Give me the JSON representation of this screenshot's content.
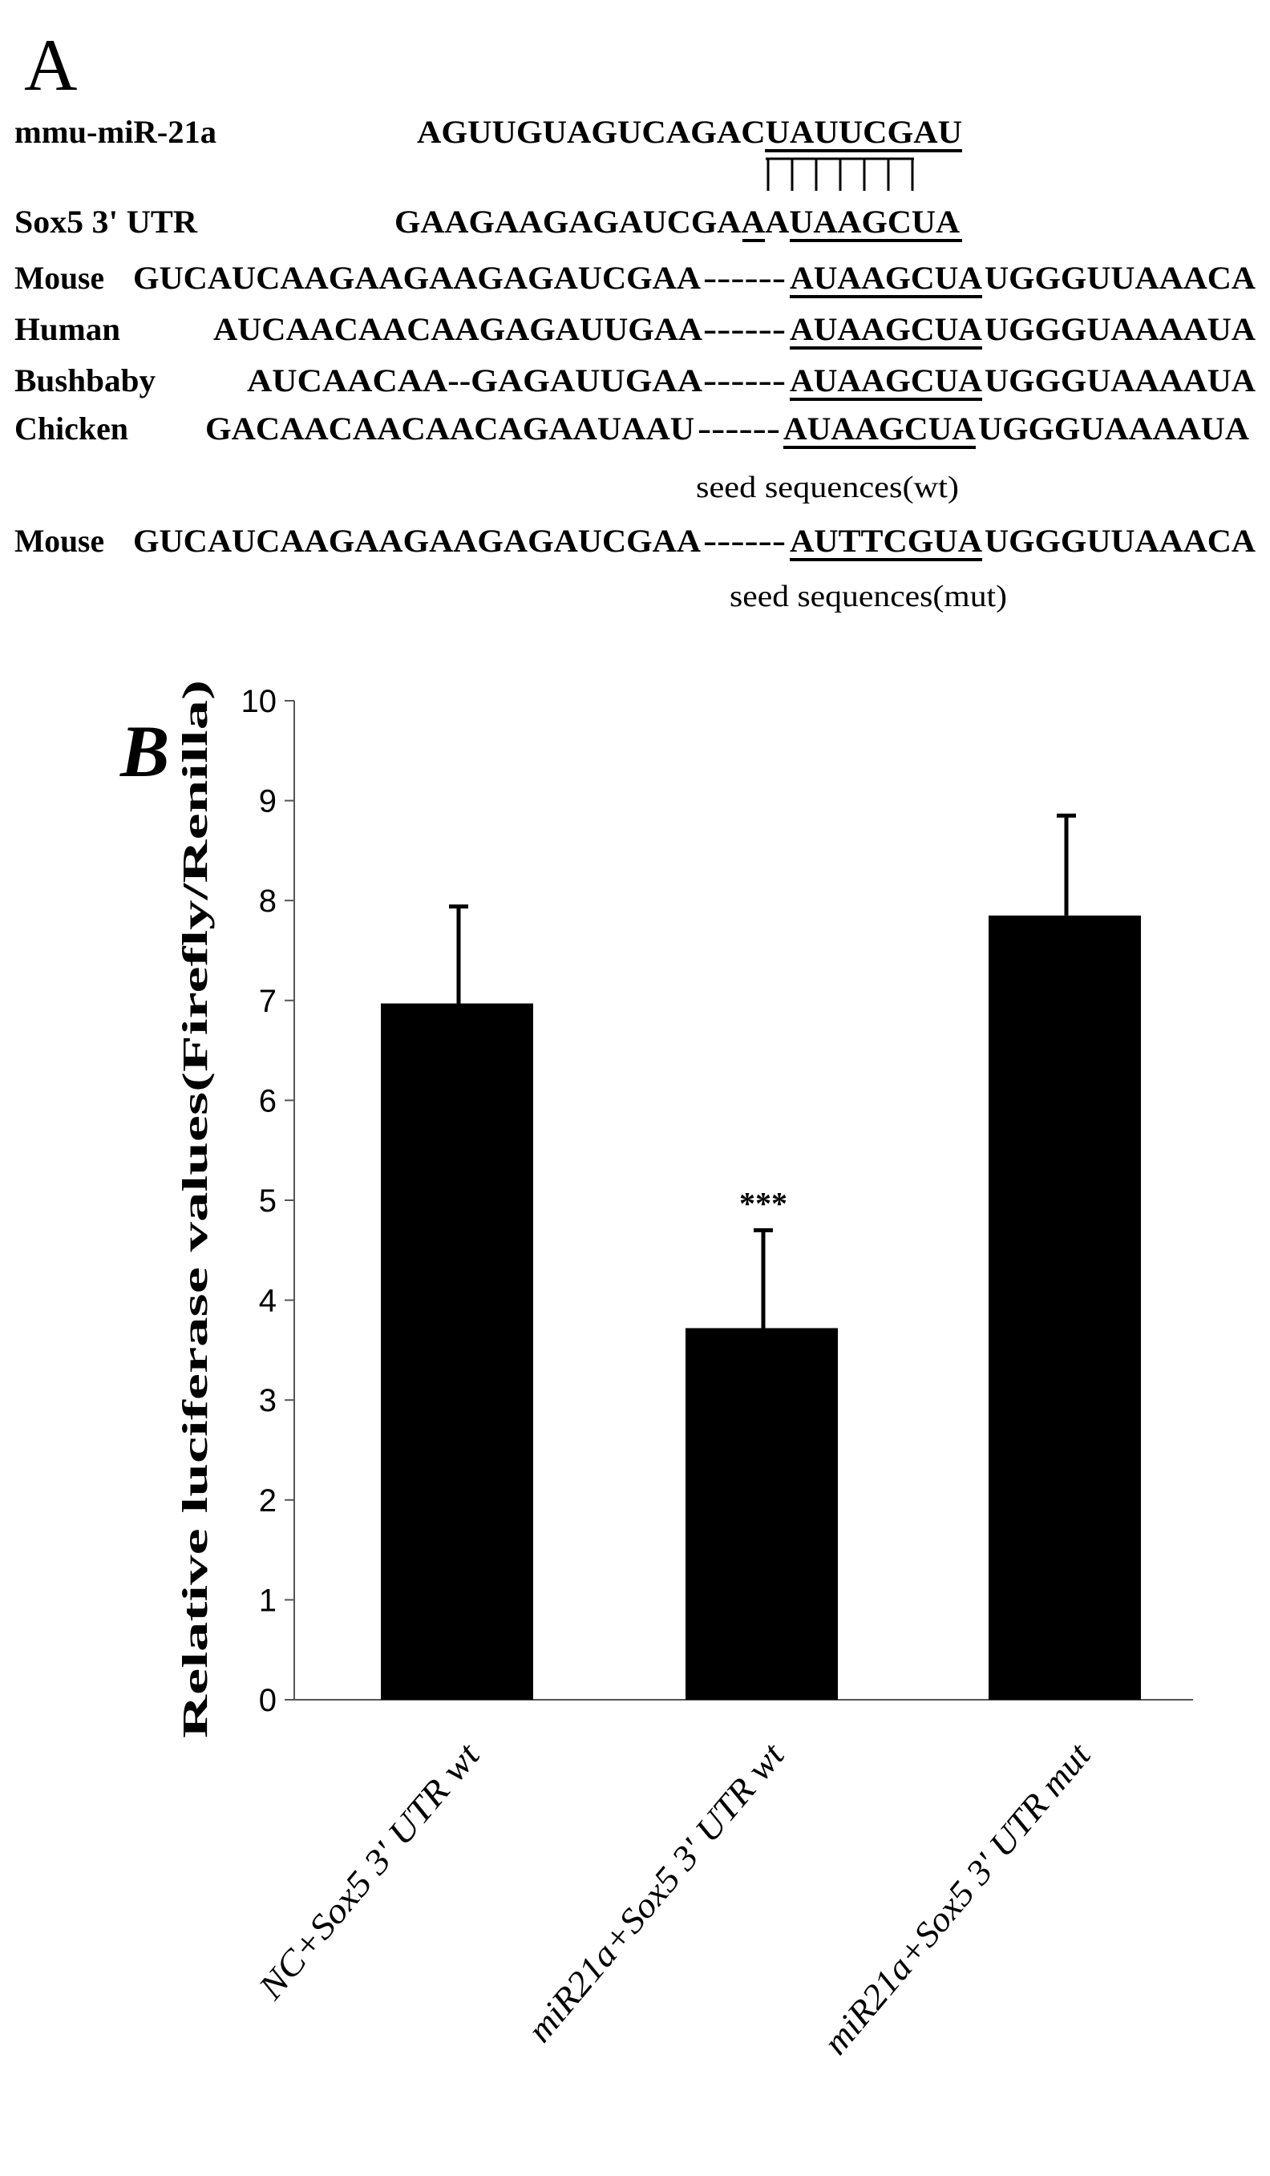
{
  "panel_a": {
    "letter": "A",
    "mirna": {
      "label": "mmu-miR-21a",
      "sequence": "AGUUGUAGUCAGACUAUUCGAU"
    },
    "utr": {
      "label": "Sox5 3' UTR",
      "sequence": "GAAGAAGAGAUCGAAAUAAGCUA"
    },
    "alignment": [
      {
        "label": "Mouse",
        "prefix": "GUCAUCAAGAAGAAGAGAUCGAA",
        "gap": "------",
        "seed": "AUAAGCUA",
        "suffix": "UGGGUUAAACA"
      },
      {
        "label": "Human",
        "prefix": "AUCAACAACAAGAGAUUGAA",
        "gap": "------",
        "seed": "AUAAGCUA",
        "suffix": "UGGGUAAAAUA"
      },
      {
        "label": "Bushbaby",
        "prefix": "AUCAACAA--GAGAUUGAA",
        "gap": "------",
        "seed": "AUAAGCUA",
        "suffix": "UGGGUAAAAUA"
      },
      {
        "label": "Chicken",
        "prefix": "GACAACAACAACAGAAUAAU",
        "gap": "------",
        "seed": "AUAAGCUA",
        "suffix": "UGGGUAAAAUA"
      }
    ],
    "seed_caption_wt": "seed sequences(wt)",
    "mutant": {
      "label": "Mouse",
      "prefix": "GUCAUCAAGAAGAAGAGAUCGAA",
      "gap": "------",
      "seed": "AUTTCGUA",
      "suffix": "UGGGUUAAACA"
    },
    "seed_caption_mut": "seed sequences(mut)"
  },
  "panel_b": {
    "letter": "B"
  },
  "chart_data": {
    "type": "bar",
    "title": "",
    "categories": [
      "NC+Sox5 3' UTR wt",
      "miR21a+Sox5 3' UTR wt",
      "miR21a+Sox5 3' UTR mut"
    ],
    "series": [
      {
        "values": [
          6.97,
          3.72,
          7.85
        ],
        "error": [
          0.97,
          0.98,
          1.0
        ]
      }
    ],
    "annotations": [
      {
        "category": "miR21a+Sox5 3' UTR wt",
        "text": "***"
      }
    ],
    "xlabel": "",
    "ylabel": "Relative luciferase values(Firefly/Renilla)",
    "ylim": [
      0,
      10
    ],
    "yticks": [
      0,
      1,
      2,
      3,
      4,
      5,
      6,
      7,
      8,
      9,
      10
    ],
    "grid": false,
    "bar_color": "#000000"
  }
}
